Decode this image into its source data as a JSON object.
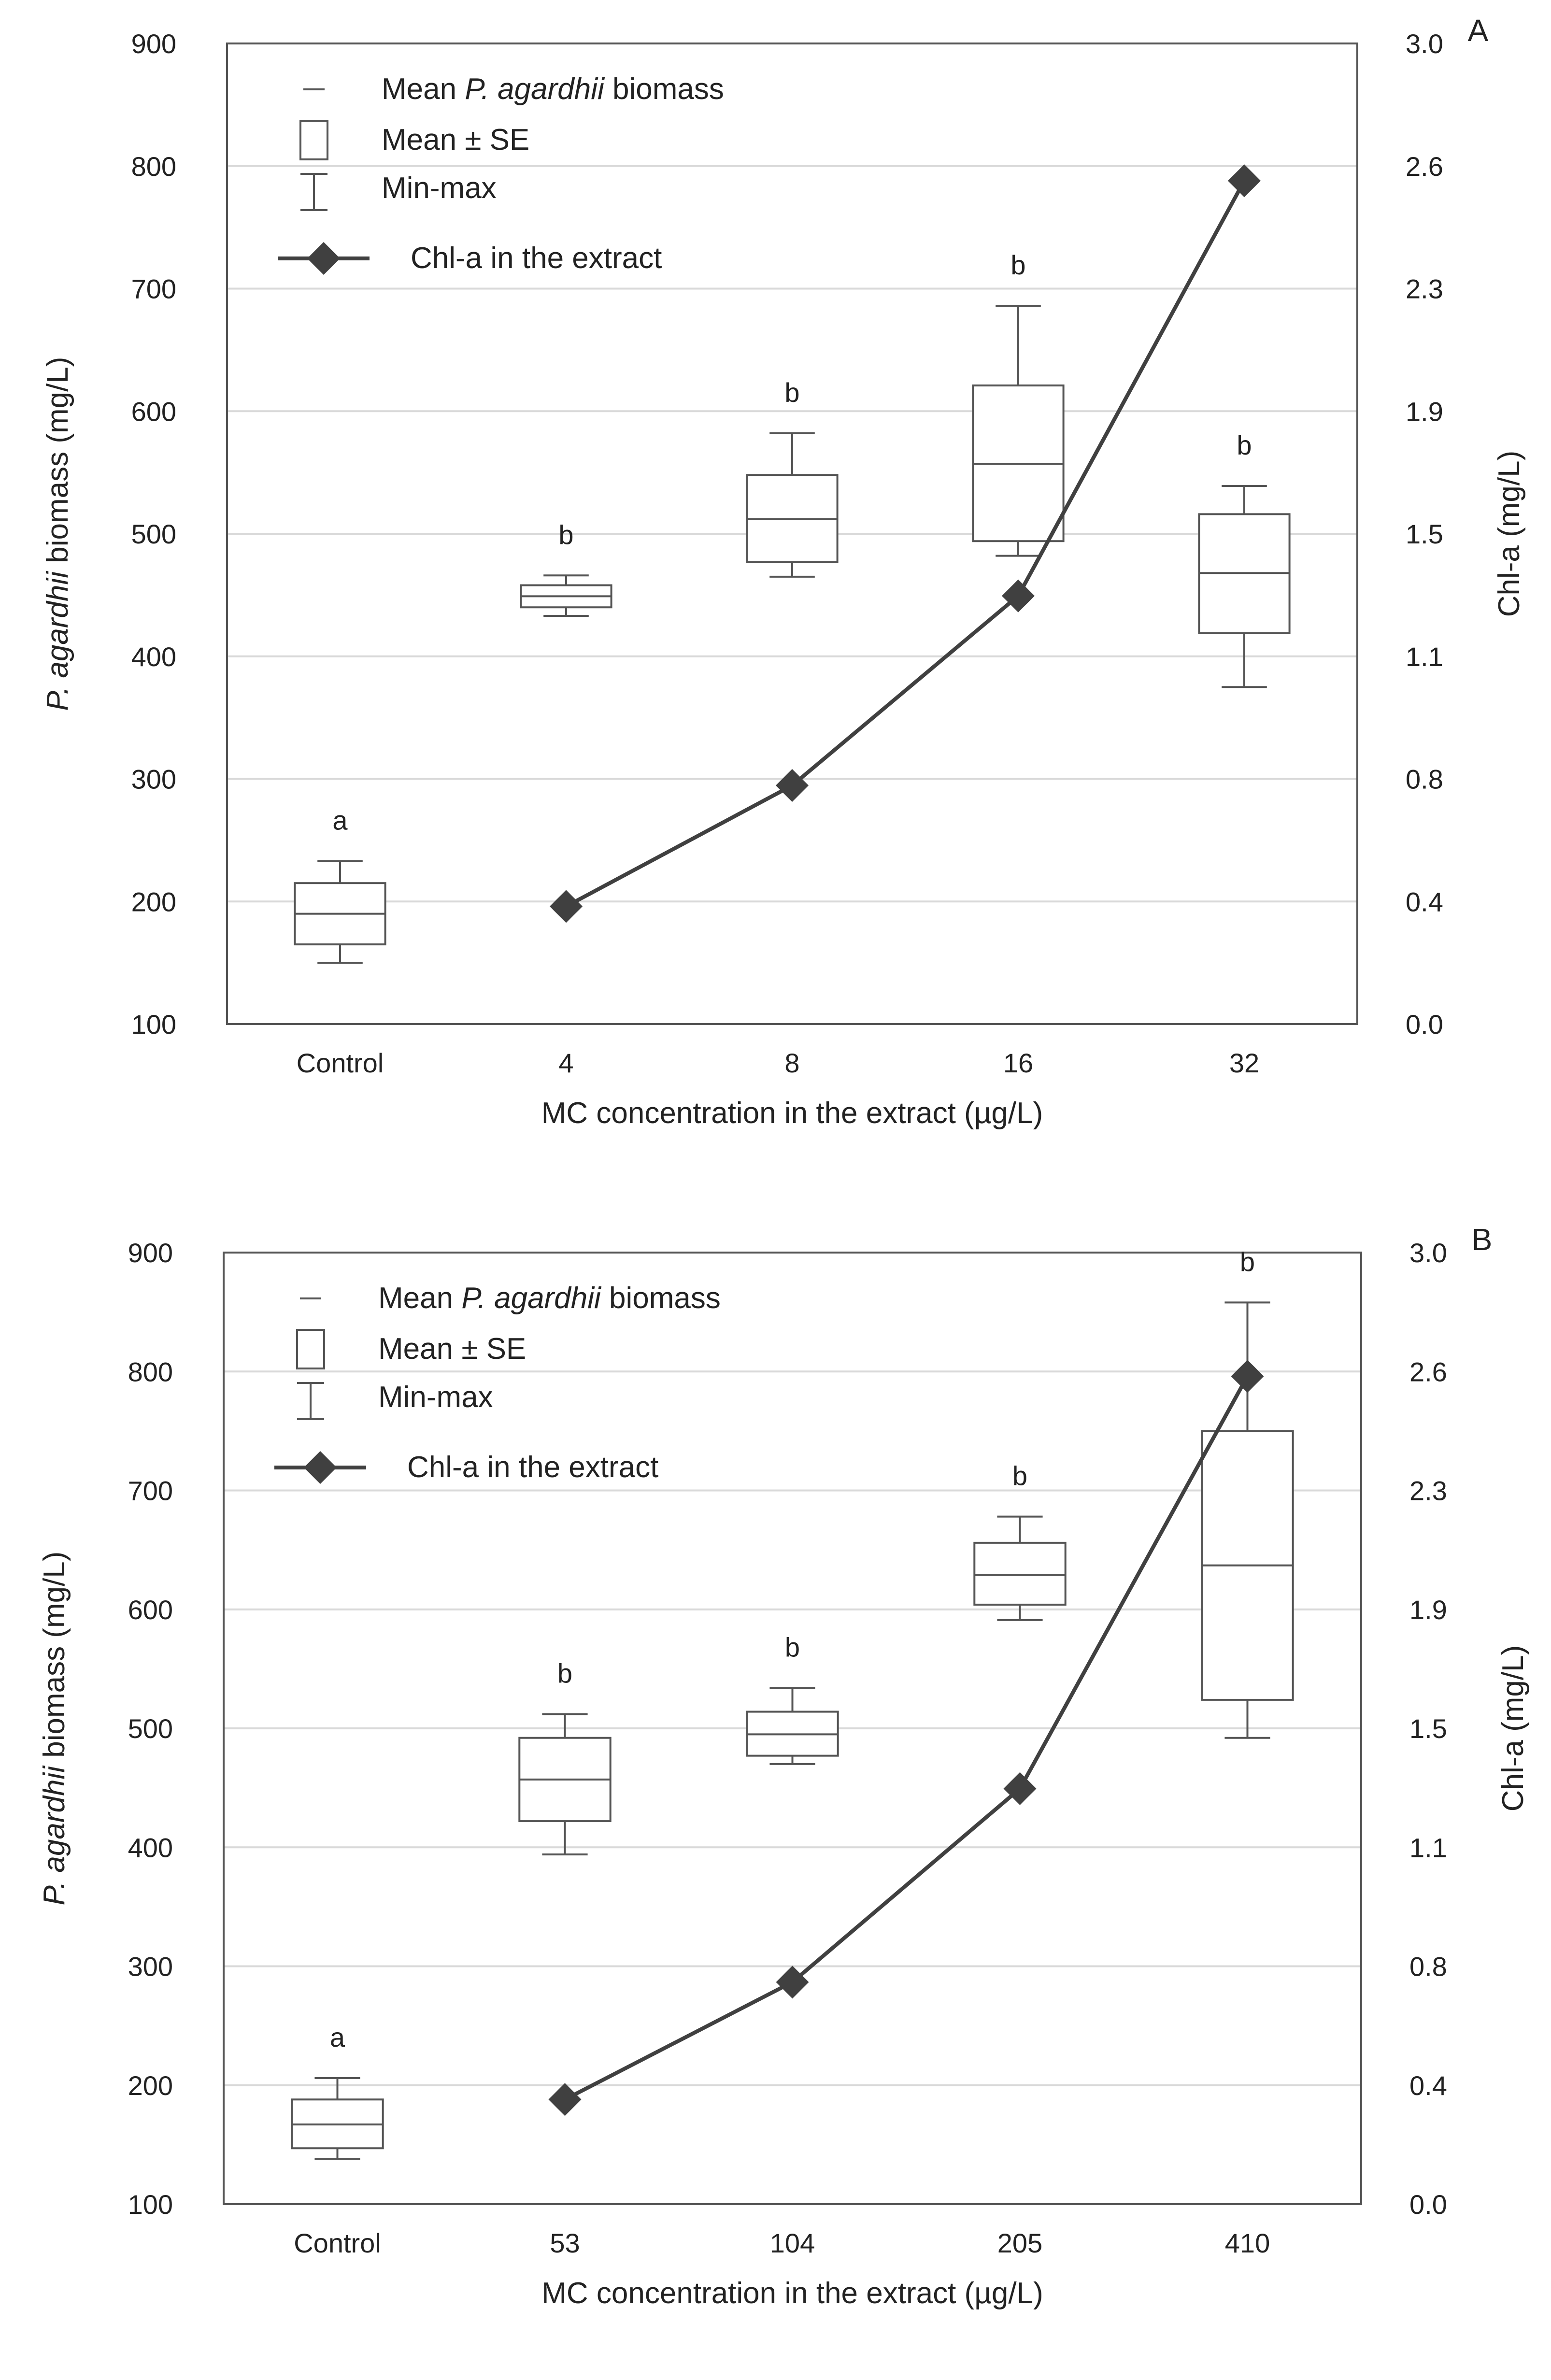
{
  "chart_data": [
    {
      "panel_label": "A",
      "type": "box",
      "categories": [
        "Control",
        "4",
        "8",
        "16",
        "32"
      ],
      "xlabel": "MC concentration in the extract (µg/L)",
      "ylabel_italic": "P. agardhii",
      "ylabel_rest": "biomass  (mg/L)",
      "y2label": "Chl-a  (mg/L)",
      "ylim": [
        100,
        900
      ],
      "yticks": [
        "100",
        "200",
        "300",
        "400",
        "500",
        "600",
        "700",
        "800",
        "900"
      ],
      "y2lim": [
        0.0,
        3.0
      ],
      "y2ticks": [
        "0.0",
        "0.4",
        "0.8",
        "1.1",
        "1.5",
        "1.9",
        "2.3",
        "2.6",
        "3.0"
      ],
      "legend": {
        "mean_prefix": "Mean ",
        "mean_italic": "P. agardhii",
        "mean_suffix": " biomass",
        "mean_se": "Mean ± SE",
        "min_max": "Min-max",
        "line": "Chl-a in the extract"
      },
      "boxes": [
        {
          "category": "Control",
          "mean": 190,
          "se_low": 165,
          "se_high": 215,
          "min": 150,
          "max": 233,
          "sig": "a"
        },
        {
          "category": "4",
          "mean": 449,
          "se_low": 440,
          "se_high": 458,
          "min": 433,
          "max": 466,
          "sig": "b"
        },
        {
          "category": "8",
          "mean": 512,
          "se_low": 477,
          "se_high": 548,
          "min": 465,
          "max": 582,
          "sig": "b"
        },
        {
          "category": "16",
          "mean": 557,
          "se_low": 494,
          "se_high": 621,
          "min": 482,
          "max": 686,
          "sig": "b"
        },
        {
          "category": "32",
          "mean": 468,
          "se_low": 419,
          "se_high": 516,
          "min": 375,
          "max": 539,
          "sig": "b"
        }
      ],
      "chl_a": {
        "categories": [
          "4",
          "8",
          "16",
          "32"
        ],
        "values": [
          0.36,
          0.73,
          1.31,
          2.58
        ]
      }
    },
    {
      "panel_label": "B",
      "type": "box",
      "categories": [
        "Control",
        "53",
        "104",
        "205",
        "410"
      ],
      "xlabel": "MC concentration in the extract (µg/L)",
      "ylabel_italic": "P. agardhii",
      "ylabel_rest": "biomass  (mg/L)",
      "y2label": "Chl-a  (mg/L)",
      "ylim": [
        100,
        900
      ],
      "yticks": [
        "100",
        "200",
        "300",
        "400",
        "500",
        "600",
        "700",
        "800",
        "900"
      ],
      "y2lim": [
        0.0,
        3.0
      ],
      "y2ticks": [
        "0.0",
        "0.4",
        "0.8",
        "1.1",
        "1.5",
        "1.9",
        "2.3",
        "2.6",
        "3.0"
      ],
      "legend": {
        "mean_prefix": "Mean ",
        "mean_italic": "P. agardhii",
        "mean_suffix": " biomass",
        "mean_se": "Mean ± SE",
        "min_max": "Min-max",
        "line": "Chl-a in the extract"
      },
      "boxes": [
        {
          "category": "Control",
          "mean": 167,
          "se_low": 147,
          "se_high": 188,
          "min": 138,
          "max": 206,
          "sig": "a"
        },
        {
          "category": "53",
          "mean": 457,
          "se_low": 422,
          "se_high": 492,
          "min": 394,
          "max": 512,
          "sig": "b"
        },
        {
          "category": "104",
          "mean": 495,
          "se_low": 477,
          "se_high": 514,
          "min": 470,
          "max": 534,
          "sig": "b"
        },
        {
          "category": "205",
          "mean": 629,
          "se_low": 604,
          "se_high": 656,
          "min": 591,
          "max": 678,
          "sig": "b"
        },
        {
          "category": "410",
          "mean": 637,
          "se_low": 524,
          "se_high": 750,
          "min": 492,
          "max": 858,
          "sig": "b"
        }
      ],
      "chl_a": {
        "categories": [
          "53",
          "104",
          "205",
          "410"
        ],
        "values": [
          0.33,
          0.7,
          1.31,
          2.61
        ]
      }
    }
  ]
}
